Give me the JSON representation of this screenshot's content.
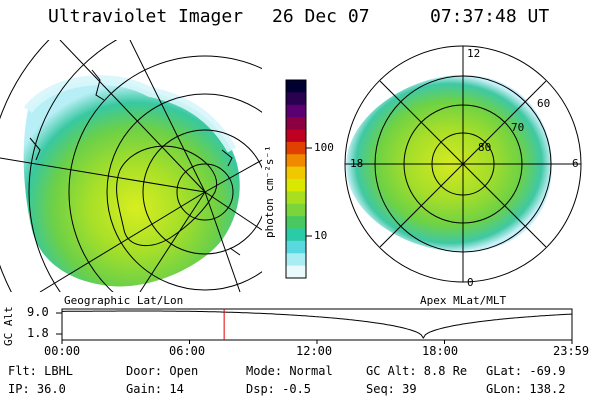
{
  "header": {
    "instrument": "Ultraviolet Imager",
    "date": "26 Dec 07",
    "time": "07:37:48 UT"
  },
  "colorbar": {
    "label": "photon cm⁻²s⁻¹",
    "ticks": [
      "100",
      "10"
    ],
    "colors": [
      "#000033",
      "#2a0050",
      "#5a0070",
      "#8a0040",
      "#c00020",
      "#e04000",
      "#f08800",
      "#f0c800",
      "#d8e800",
      "#a8e020",
      "#7ad43a",
      "#4ac860",
      "#2acca8",
      "#5ad8e0",
      "#a8ecf4",
      "#e8fafc"
    ]
  },
  "left_map": {
    "caption": "Geographic Lat/Lon"
  },
  "right_map": {
    "caption": "Apex MLat/MLT",
    "lat_labels": [
      "80",
      "70",
      "60"
    ],
    "mlt_labels": [
      "12",
      "18",
      "6",
      "0"
    ]
  },
  "altitude_plot": {
    "axis_label": "GC Alt",
    "y_ticks": [
      "9.0",
      "1.8"
    ],
    "x_ticks": [
      "00:00",
      "06:00",
      "12:00",
      "18:00",
      "23:59"
    ],
    "marker_hour": 7.63
  },
  "info": {
    "filter": "Flt: LBHL",
    "ip": "IP: 36.0",
    "door": "Door: Open",
    "gain": "Gain: 14",
    "mode": "Mode: Normal",
    "dsp": "Dsp:   -0.5",
    "gc_alt": "GC Alt: 8.8 Re",
    "seq": "Seq: 39",
    "glat": "GLat: -69.9",
    "glon": "GLon: 138.2"
  }
}
